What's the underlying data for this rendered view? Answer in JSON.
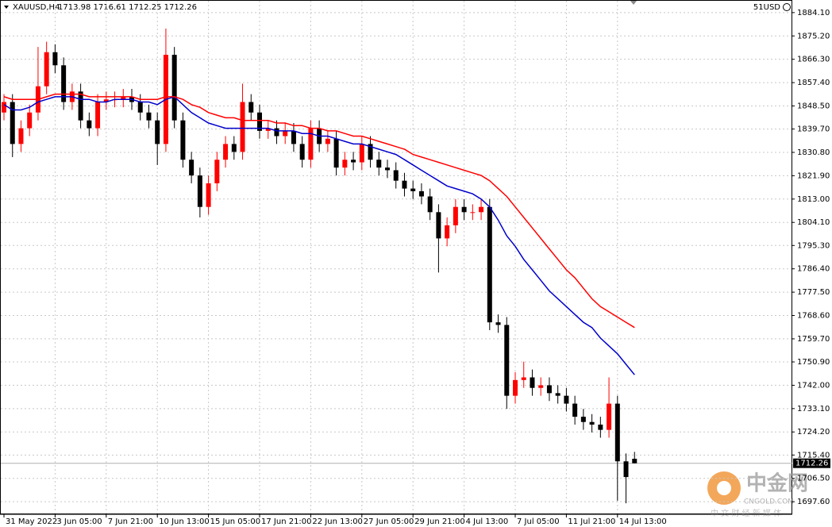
{
  "header": {
    "title": "XAUUSD,H4",
    "ohlc": "1713.98 1716.61 1712.25 1712.26",
    "account": "51USD"
  },
  "watermark": {
    "brand": "中金网",
    "site": "CNGOLD.COM",
    "slogan": "中 文 财 经 新 媒 体"
  },
  "chart_data": {
    "type": "candlestick",
    "categories": [
      "31 May 2022",
      null,
      null,
      null,
      null,
      null,
      "3 Jun 05:00",
      null,
      null,
      null,
      null,
      null,
      "7 Jun 21:00",
      null,
      null,
      null,
      null,
      null,
      "10 Jun 13:00",
      null,
      null,
      null,
      null,
      null,
      "15 Jun 05:00",
      null,
      null,
      null,
      null,
      null,
      "17 Jun 21:00",
      null,
      null,
      null,
      null,
      null,
      "22 Jun 13:00",
      null,
      null,
      null,
      null,
      null,
      "27 Jun 05:00",
      null,
      null,
      null,
      null,
      null,
      "29 Jun 21:00",
      null,
      null,
      null,
      null,
      null,
      "4 Jul 13:00",
      null,
      null,
      null,
      null,
      null,
      "7 Jul 05:00",
      null,
      null,
      null,
      null,
      null,
      "11 Jul 21:00",
      null,
      null,
      null,
      null,
      null,
      "14 Jul 13:00",
      null,
      null
    ],
    "open": [
      1846,
      1850,
      1834,
      1840,
      1846,
      1856,
      1869,
      1864,
      1850,
      1854,
      1843,
      1840,
      1850,
      1851,
      1851,
      1852,
      1850,
      1846,
      1843,
      1834,
      1868,
      1843,
      1828,
      1822,
      1810,
      1819,
      1828,
      1834,
      1831,
      1850,
      1846,
      1839,
      1840,
      1837,
      1839,
      1834,
      1828,
      1840,
      1834,
      1836,
      1825,
      1828,
      1827,
      1834,
      1828,
      1825,
      1824,
      1820,
      1817,
      1816,
      1814,
      1808,
      1798,
      1803,
      1810,
      1808,
      1808,
      1810,
      1766,
      1765,
      1738,
      1744,
      1745,
      1741,
      1742,
      1739,
      1738,
      1735,
      1730,
      1728,
      1727,
      1725,
      1735,
      1713,
      1713.98
    ],
    "high": [
      1853,
      1853,
      1843,
      1849,
      1871,
      1873,
      1872,
      1867,
      1857,
      1857,
      1846,
      1853,
      1854,
      1854,
      1855,
      1855,
      1853,
      1849,
      1846,
      1878,
      1871,
      1846,
      1831,
      1825,
      1822,
      1831,
      1837,
      1837,
      1857,
      1853,
      1849,
      1843,
      1843,
      1842,
      1842,
      1837,
      1843,
      1843,
      1839,
      1839,
      1831,
      1831,
      1837,
      1837,
      1831,
      1828,
      1827,
      1823,
      1820,
      1819,
      1817,
      1811,
      1806,
      1813,
      1813,
      1811,
      1813,
      1813,
      1769,
      1768,
      1747,
      1751,
      1748,
      1745,
      1745,
      1742,
      1741,
      1738,
      1733,
      1731,
      1730,
      1745,
      1738,
      1716,
      1716.61
    ],
    "low": [
      1843,
      1829,
      1831,
      1837,
      1843,
      1853,
      1861,
      1847,
      1847,
      1840,
      1837,
      1837,
      1847,
      1848,
      1848,
      1847,
      1843,
      1840,
      1826,
      1831,
      1840,
      1825,
      1819,
      1806,
      1807,
      1816,
      1825,
      1828,
      1828,
      1843,
      1836,
      1836,
      1834,
      1834,
      1831,
      1825,
      1825,
      1831,
      1831,
      1822,
      1822,
      1824,
      1824,
      1825,
      1822,
      1821,
      1817,
      1814,
      1813,
      1811,
      1805,
      1785,
      1795,
      1800,
      1805,
      1805,
      1805,
      1763,
      1762,
      1733,
      1735,
      1741,
      1738,
      1738,
      1736,
      1735,
      1732,
      1727,
      1725,
      1724,
      1722,
      1722,
      1698,
      1697,
      1712.25
    ],
    "close": [
      1850,
      1834,
      1840,
      1846,
      1856,
      1869,
      1864,
      1850,
      1854,
      1843,
      1840,
      1850,
      1851,
      1851,
      1852,
      1850,
      1846,
      1843,
      1834,
      1868,
      1843,
      1828,
      1822,
      1810,
      1819,
      1828,
      1834,
      1831,
      1850,
      1846,
      1839,
      1840,
      1837,
      1839,
      1834,
      1828,
      1840,
      1834,
      1836,
      1825,
      1828,
      1827,
      1834,
      1828,
      1825,
      1824,
      1820,
      1817,
      1816,
      1814,
      1808,
      1798,
      1803,
      1810,
      1808,
      1808,
      1810,
      1766,
      1765,
      1738,
      1744,
      1745,
      1741,
      1742,
      1739,
      1738,
      1735,
      1730,
      1728,
      1727,
      1725,
      1735,
      1713,
      1707,
      1712.26
    ],
    "up_color": "#ff0000",
    "down_color": "#000000",
    "overlays": [
      {
        "color": "#0000cc",
        "values": [
          1849,
          1847,
          1847,
          1848,
          1850,
          1851,
          1852,
          1852,
          1852,
          1851,
          1851,
          1850,
          1850,
          1851,
          1851,
          1851,
          1850,
          1850,
          1849,
          1851,
          1852,
          1849,
          1846,
          1844,
          1842,
          1841,
          1840,
          1840,
          1840,
          1840,
          1840,
          1840,
          1839,
          1839,
          1839,
          1838,
          1838,
          1837,
          1837,
          1836,
          1835,
          1834,
          1834,
          1833,
          1832,
          1831,
          1830,
          1828,
          1826,
          1824,
          1822,
          1820,
          1818,
          1817,
          1816,
          1815,
          1813,
          1810,
          1805,
          1799,
          1795,
          1790,
          1786,
          1782,
          1778,
          1775,
          1772,
          1769,
          1766,
          1764,
          1760,
          1757,
          1754,
          1750,
          1746
        ]
      },
      {
        "color": "#ff0000",
        "values": [
          1852,
          1851,
          1851,
          1851,
          1851,
          1852,
          1853,
          1853,
          1853,
          1853,
          1852,
          1852,
          1852,
          1852,
          1852,
          1852,
          1851,
          1851,
          1851,
          1852,
          1852,
          1851,
          1849,
          1848,
          1846,
          1845,
          1844,
          1844,
          1843,
          1843,
          1843,
          1843,
          1842,
          1842,
          1841,
          1841,
          1840,
          1840,
          1839,
          1839,
          1838,
          1837,
          1837,
          1836,
          1835,
          1834,
          1833,
          1832,
          1830,
          1829,
          1828,
          1827,
          1826,
          1825,
          1824,
          1823,
          1822,
          1820,
          1817,
          1814,
          1810,
          1806,
          1802,
          1798,
          1794,
          1790,
          1786,
          1783,
          1779,
          1775,
          1772,
          1770,
          1768,
          1766,
          1764
        ]
      }
    ],
    "last_price": {
      "value": 1712.26,
      "label": "1712.26"
    },
    "ylim": [
      1692.8,
      1888.9
    ],
    "yticks": [
      {
        "value": 1884.1,
        "label": "1884.10"
      },
      {
        "value": 1875.2,
        "label": "1875.20"
      },
      {
        "value": 1866.3,
        "label": "1866.30"
      },
      {
        "value": 1857.4,
        "label": "1857.40"
      },
      {
        "value": 1848.5,
        "label": "1848.50"
      },
      {
        "value": 1839.7,
        "label": "1839.70"
      },
      {
        "value": 1830.8,
        "label": "1830.80"
      },
      {
        "value": 1821.9,
        "label": "1821.90"
      },
      {
        "value": 1813,
        "label": "1813.00"
      },
      {
        "value": 1804.1,
        "label": "1804.10"
      },
      {
        "value": 1795.3,
        "label": "1795.30"
      },
      {
        "value": 1786.4,
        "label": "1786.40"
      },
      {
        "value": 1777.5,
        "label": "1777.50"
      },
      {
        "value": 1768.6,
        "label": "1768.60"
      },
      {
        "value": 1759.7,
        "label": "1759.70"
      },
      {
        "value": 1750.9,
        "label": "1750.90"
      },
      {
        "value": 1742,
        "label": "1742.00"
      },
      {
        "value": 1733.1,
        "label": "1733.10"
      },
      {
        "value": 1724.2,
        "label": "1724.20"
      },
      {
        "value": 1715.4,
        "label": "1715.40"
      },
      {
        "value": 1706.5,
        "label": "1706.50"
      },
      {
        "value": 1697.6,
        "label": "1697.60"
      }
    ],
    "grid": true
  }
}
